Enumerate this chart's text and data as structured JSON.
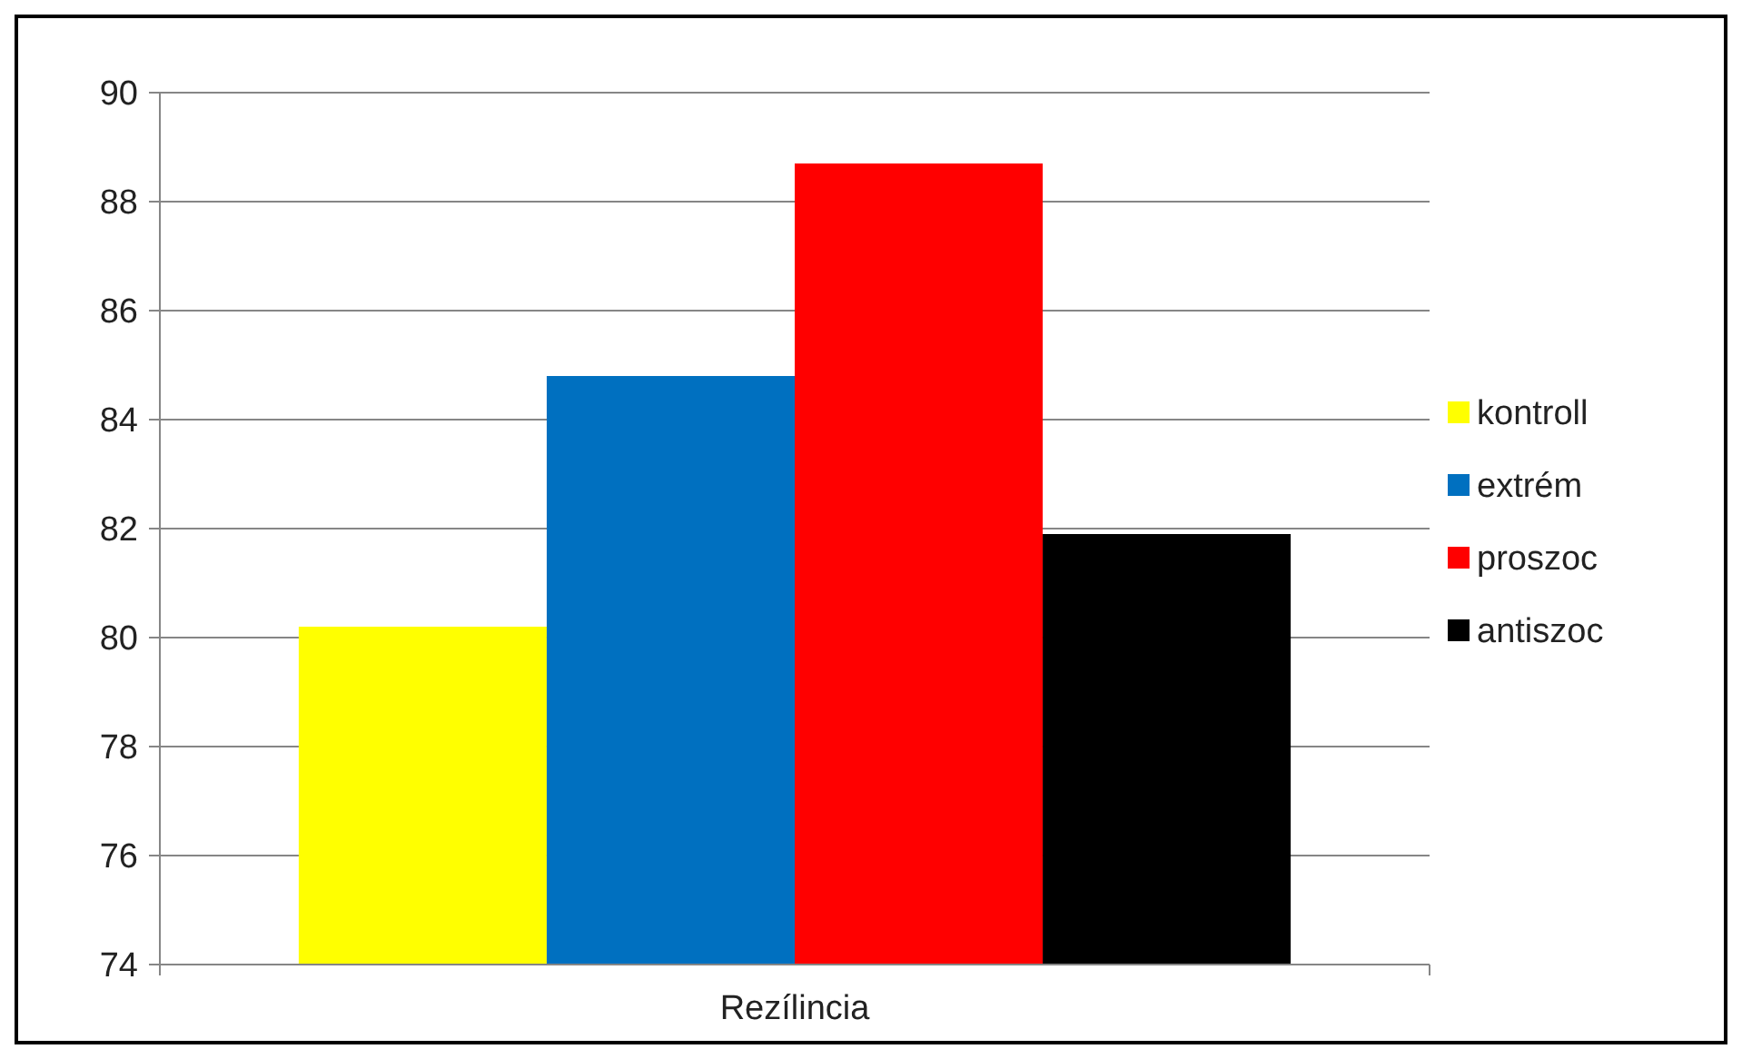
{
  "chart_data": {
    "type": "bar",
    "categories": [
      "Rezílincia"
    ],
    "series": [
      {
        "name": "kontroll",
        "color": "#ffff00",
        "values": [
          80.2
        ]
      },
      {
        "name": "extrém",
        "color": "#0070c0",
        "values": [
          84.8
        ]
      },
      {
        "name": "proszoc",
        "color": "#ff0000",
        "values": [
          88.7
        ]
      },
      {
        "name": "antiszoc",
        "color": "#000000",
        "values": [
          81.9
        ]
      }
    ],
    "ylim": [
      74,
      90
    ],
    "yticks": [
      74,
      76,
      78,
      80,
      82,
      84,
      86,
      88,
      90
    ],
    "grid": "y",
    "legend": "right"
  }
}
